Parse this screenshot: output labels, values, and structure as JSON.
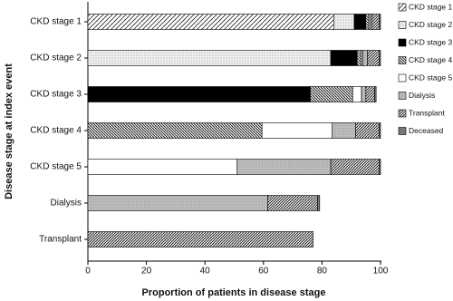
{
  "chart_data": {
    "type": "bar",
    "orientation": "horizontal",
    "stacked": true,
    "x_label": "Proportion of patients in disease stage",
    "y_label": "Disease stage at index event",
    "categories": [
      "CKD stage 1",
      "CKD stage 2",
      "CKD stage 3",
      "CKD stage 4",
      "CKD stage 5",
      "Dialysis",
      "Transplant"
    ],
    "xlim": [
      0,
      100
    ],
    "xticks": [
      0,
      20,
      40,
      60,
      80,
      100
    ],
    "series": [
      {
        "name": "CKD stage 1",
        "color": "#222222",
        "pattern": "slash",
        "values": [
          84,
          0,
          0,
          0,
          0,
          0,
          0
        ]
      },
      {
        "name": "CKD stage 2",
        "color": "#f0f0f0",
        "pattern": "dots",
        "values": [
          7,
          83,
          0,
          0,
          0,
          0,
          0
        ]
      },
      {
        "name": "CKD stage 3",
        "color": "#000000",
        "pattern": "solid",
        "values": [
          4,
          9,
          76,
          0,
          0,
          0,
          0
        ]
      },
      {
        "name": "CKD stage 4",
        "color": "#222222",
        "pattern": "backslash-dense",
        "values": [
          1,
          1.5,
          14.5,
          59.5,
          0,
          0,
          0
        ]
      },
      {
        "name": "CKD stage 5",
        "color": "#ffffff",
        "pattern": "solid",
        "values": [
          0.5,
          0.5,
          3,
          24,
          51,
          0,
          0
        ]
      },
      {
        "name": "Dialysis",
        "color": "#bdbdbd",
        "pattern": "dots",
        "values": [
          0.5,
          1.5,
          1.5,
          8,
          32,
          61.5,
          0
        ]
      },
      {
        "name": "Transplant",
        "color": "#222222",
        "pattern": "slash-dense",
        "values": [
          2.5,
          4,
          3,
          8,
          16.5,
          17,
          77
        ]
      },
      {
        "name": "Deceased",
        "color": "#777777",
        "pattern": "solid",
        "values": [
          0.5,
          0.5,
          0.5,
          0.5,
          0.5,
          0.7,
          0
        ]
      }
    ]
  }
}
